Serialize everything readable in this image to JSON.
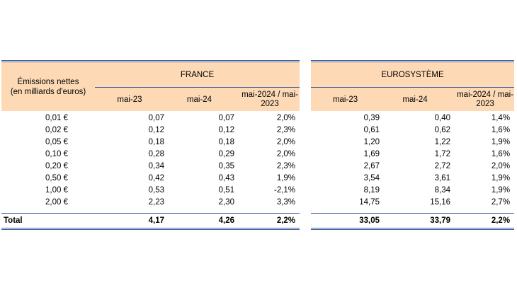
{
  "table": {
    "row_header": "Émissions nettes (en milliards d'euros)",
    "row_header_line1": "Émissions nettes",
    "row_header_line2": "(en milliards d'euros)",
    "groups": [
      {
        "name": "FRANCE",
        "columns": [
          "mai-23",
          "mai-24",
          "mai-2024 / mai-2023"
        ],
        "col3_line1": "mai-2024 / mai-",
        "col3_line2": "2023"
      },
      {
        "name": "EUROSYSTÈME",
        "columns": [
          "mai-23",
          "mai-24",
          "mai-2024 / mai-2023"
        ],
        "col3_line1": "mai-2024 / mai-",
        "col3_line2": "2023"
      }
    ],
    "rows": [
      {
        "label": "0,01 €",
        "fr": [
          "0,07",
          "0,07",
          "2,0%"
        ],
        "eu": [
          "0,39",
          "0,40",
          "1,4%"
        ]
      },
      {
        "label": "0,02 €",
        "fr": [
          "0,12",
          "0,12",
          "2,3%"
        ],
        "eu": [
          "0,61",
          "0,62",
          "1,6%"
        ]
      },
      {
        "label": "0,05 €",
        "fr": [
          "0,18",
          "0,18",
          "2,0%"
        ],
        "eu": [
          "1,20",
          "1,22",
          "1,9%"
        ]
      },
      {
        "label": "0,10 €",
        "fr": [
          "0,28",
          "0,29",
          "2,0%"
        ],
        "eu": [
          "1,69",
          "1,72",
          "1,6%"
        ]
      },
      {
        "label": "0,20 €",
        "fr": [
          "0,34",
          "0,35",
          "2,3%"
        ],
        "eu": [
          "2,67",
          "2,72",
          "2,0%"
        ]
      },
      {
        "label": "0,50 €",
        "fr": [
          "0,42",
          "0,43",
          "1,9%"
        ],
        "eu": [
          "3,54",
          "3,61",
          "1,9%"
        ]
      },
      {
        "label": "1,00 €",
        "fr": [
          "0,53",
          "0,51",
          "-2,1%"
        ],
        "eu": [
          "8,19",
          "8,34",
          "1,9%"
        ]
      },
      {
        "label": "2,00 €",
        "fr": [
          "2,23",
          "2,30",
          "3,3%"
        ],
        "eu": [
          "14,75",
          "15,16",
          "2,7%"
        ]
      }
    ],
    "total": {
      "label": "Total",
      "fr": [
        "4,17",
        "4,26",
        "2,2%"
      ],
      "eu": [
        "33,05",
        "33,79",
        "2,2%"
      ]
    }
  },
  "colors": {
    "header_bg": "#fdd9b5",
    "rule": "#3f5d9a"
  }
}
